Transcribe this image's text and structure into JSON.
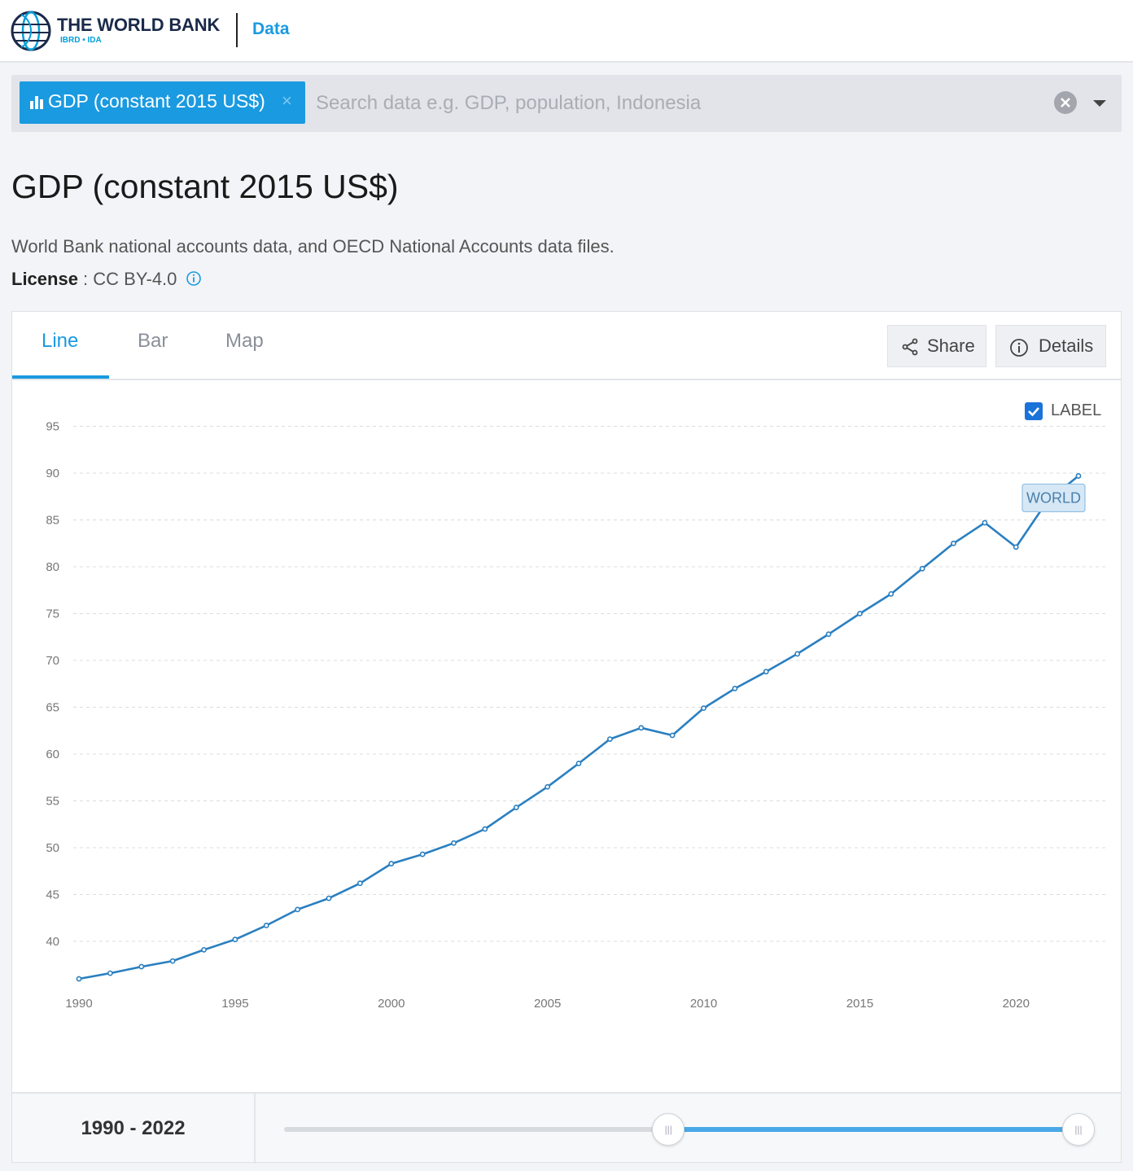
{
  "header": {
    "brand": "THE WORLD BANK",
    "brand_sub": "IBRD • IDA",
    "section": "Data"
  },
  "search": {
    "chip_label": "GDP (constant 2015 US$)",
    "chip_close": "×",
    "placeholder": "Search data e.g. GDP, population, Indonesia"
  },
  "page": {
    "title": "GDP (constant 2015 US$)",
    "source": "World Bank national accounts data, and OECD National Accounts data files.",
    "license_label": "License",
    "license_value": " : CC BY-4.0"
  },
  "tabs": [
    "Line",
    "Bar",
    "Map"
  ],
  "buttons": {
    "share": "Share",
    "details": "Details"
  },
  "label_toggle": "LABEL",
  "range": {
    "text": "1990 - 2022",
    "start": 1990,
    "end": 2022,
    "slider_min": 1960,
    "slider_max": 2022
  },
  "colors": {
    "accent": "#1a9ae0",
    "line": "#2a7fc0"
  },
  "chart_data": {
    "type": "line",
    "title": "GDP (constant 2015 US$)",
    "series": [
      {
        "name": "WORLD",
        "x": [
          1990,
          1991,
          1992,
          1993,
          1994,
          1995,
          1996,
          1997,
          1998,
          1999,
          2000,
          2001,
          2002,
          2003,
          2004,
          2005,
          2006,
          2007,
          2008,
          2009,
          2010,
          2011,
          2012,
          2013,
          2014,
          2015,
          2016,
          2017,
          2018,
          2019,
          2020,
          2021,
          2022
        ],
        "values": [
          36.0,
          36.6,
          37.3,
          37.9,
          39.1,
          40.2,
          41.7,
          43.4,
          44.6,
          46.2,
          48.3,
          49.3,
          50.5,
          52.0,
          54.3,
          56.5,
          59.0,
          61.6,
          62.8,
          62.0,
          64.9,
          67.0,
          68.8,
          70.7,
          72.8,
          75.0,
          77.1,
          79.8,
          82.5,
          84.7,
          82.1,
          87.0,
          89.7
        ]
      }
    ],
    "xlabel": "",
    "ylabel": "",
    "xticks": [
      "1990",
      "1995",
      "2000",
      "2005",
      "2010",
      "2015",
      "2020"
    ],
    "yticks": [
      "40",
      "45",
      "50",
      "55",
      "60",
      "65",
      "70",
      "75",
      "80",
      "85",
      "90",
      "95"
    ],
    "xlim": [
      1990,
      2022
    ],
    "ylim": [
      35.6,
      95
    ],
    "grid": true,
    "series_label": "WORLD"
  }
}
